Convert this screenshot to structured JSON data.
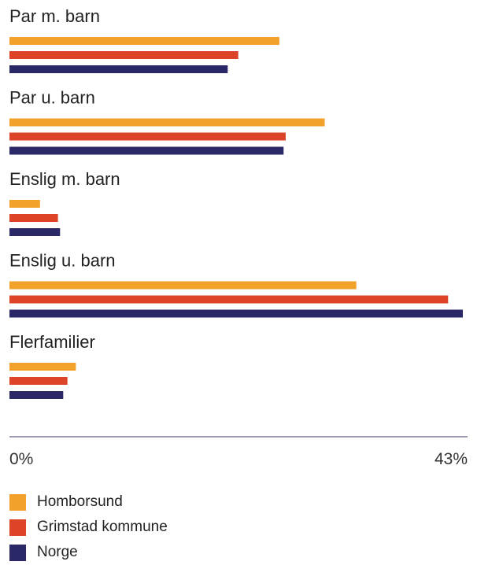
{
  "chart_data": {
    "type": "bar",
    "orientation": "horizontal",
    "categories": [
      "Par m. barn",
      "Par u. barn",
      "Enslig m. barn",
      "Enslig u. barn",
      "Flerfamilier"
    ],
    "series": [
      {
        "name": "Homborsund",
        "color": "#f2a12a",
        "values": [
          25.6,
          29.9,
          2.9,
          32.9,
          6.3
        ]
      },
      {
        "name": "Grimstad kommune",
        "color": "#dd4327",
        "values": [
          21.7,
          26.2,
          4.6,
          41.6,
          5.5
        ]
      },
      {
        "name": "Norge",
        "color": "#2a2866",
        "values": [
          20.7,
          26.0,
          4.8,
          43.0,
          5.1
        ]
      }
    ],
    "xlim": [
      0,
      43
    ],
    "x_tick_labels": [
      "0%",
      "43%"
    ],
    "legend_position": "bottom-left"
  }
}
